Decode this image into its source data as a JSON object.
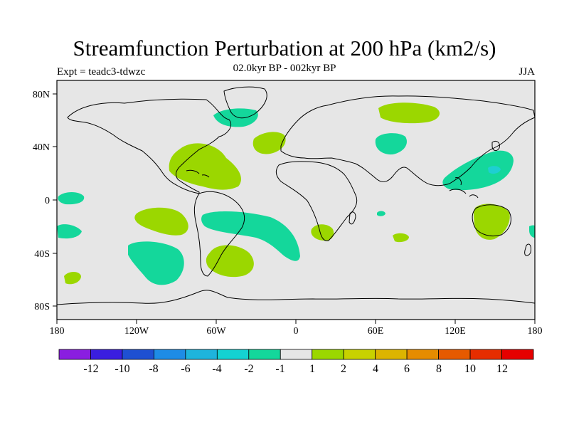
{
  "title": "Streamfunction Perturbation at 200 hPa (km2/s)",
  "subtitle": "02.0kyr BP - 002kyr BP",
  "experiment": "Expt = teadc3-tdwzc",
  "season": "JJA",
  "lon_ticks": [
    "180",
    "120W",
    "60W",
    "0",
    "60E",
    "120E",
    "180"
  ],
  "lat_ticks": [
    "80N",
    "40N",
    "0",
    "40S",
    "80S"
  ],
  "colorbar": {
    "labels": [
      "-12",
      "-10",
      "-8",
      "-6",
      "-4",
      "-2",
      "-1",
      "1",
      "2",
      "4",
      "6",
      "8",
      "10",
      "12"
    ],
    "colors": [
      "#8a1ee0",
      "#3a1ee0",
      "#1e50d2",
      "#1e8ce6",
      "#1eb4dc",
      "#14d2d2",
      "#14d79b",
      "#e6e6e6",
      "#9bd700",
      "#c8d200",
      "#dcb400",
      "#e68c00",
      "#e65a00",
      "#e62d00",
      "#e60000"
    ]
  },
  "colors": {
    "background": "#e6e6e6",
    "positive": "#9bd700",
    "negative": "#14d79b",
    "negative_strong": "#1ecfd2"
  }
}
